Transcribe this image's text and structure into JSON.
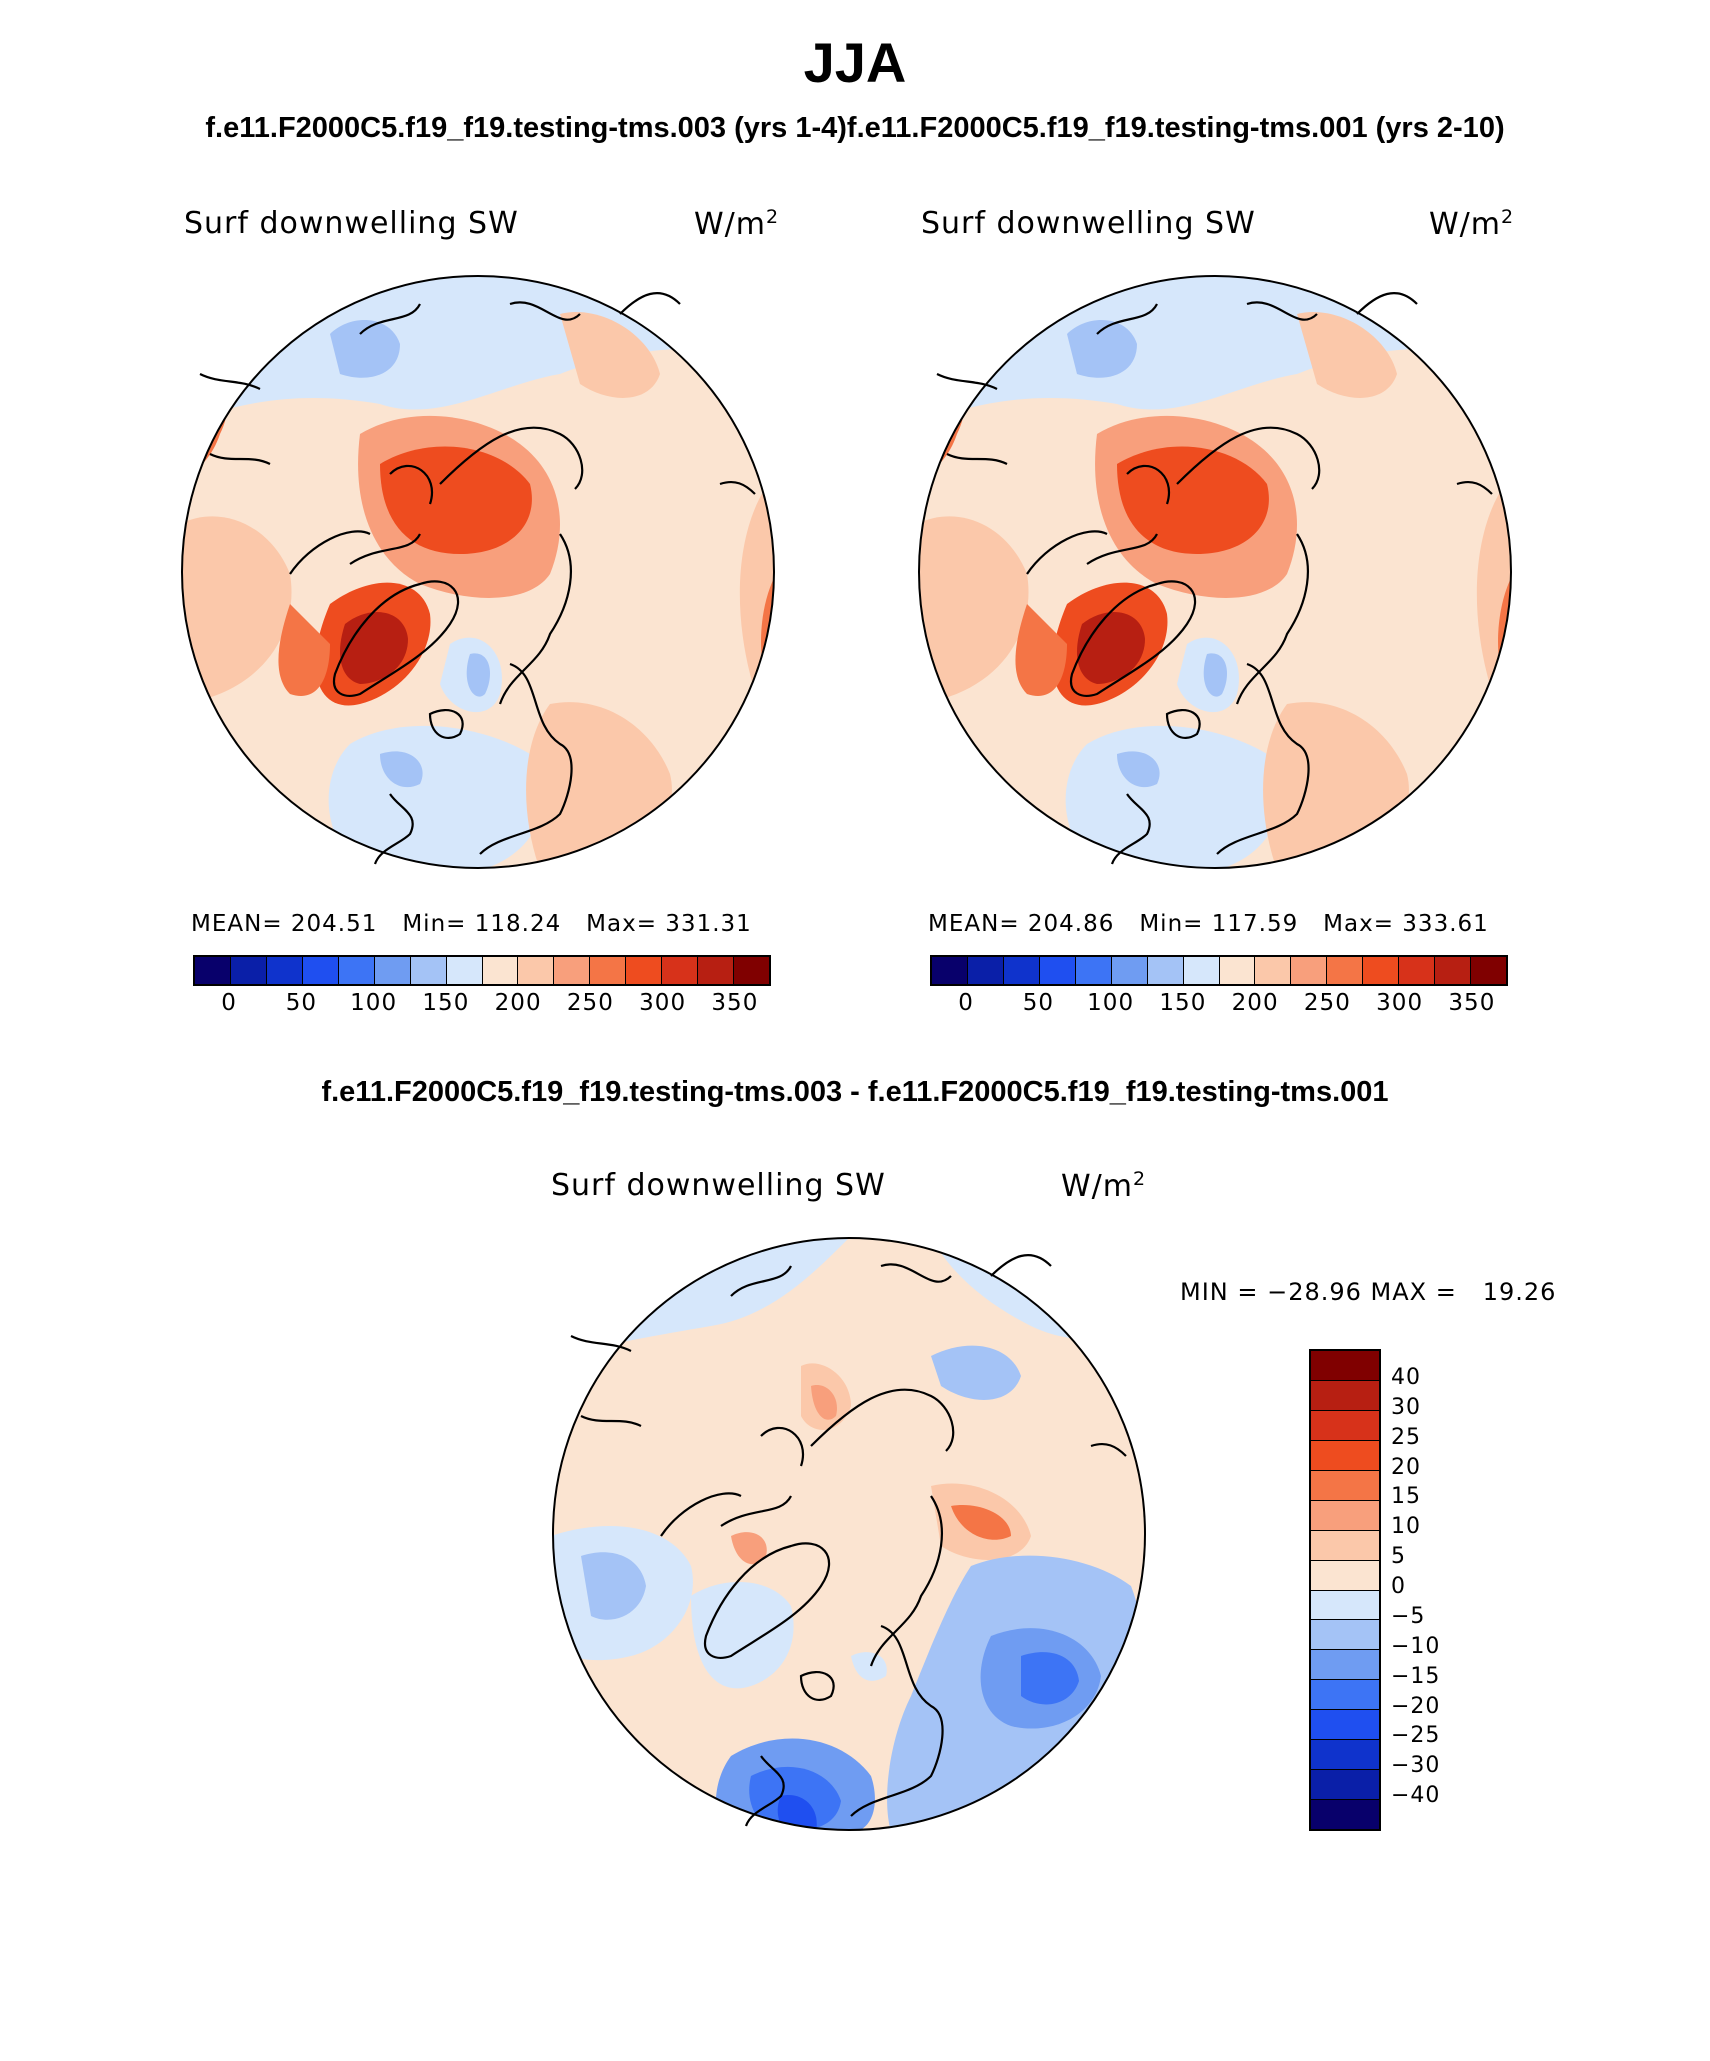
{
  "title": "JJA",
  "case_titles": "f.e11.F2000C5.f19_f19.testing-tms.003 (yrs 1-4)f.e11.F2000C5.f19_f19.testing-tms.001 (yrs 2-10)",
  "diff_title": "f.e11.F2000C5.f19_f19.testing-tms.003 - f.e11.F2000C5.f19_f19.testing-tms.001",
  "panels": [
    {
      "variable": "Surf downwelling SW",
      "units": "W/m",
      "units_exp": "2",
      "mean_label": "MEAN=",
      "mean": "204.51",
      "min_label": "Min=",
      "min": "118.24",
      "max_label": "Max=",
      "max": "331.31"
    },
    {
      "variable": "Surf downwelling SW",
      "units": "W/m",
      "units_exp": "2",
      "mean_label": "MEAN=",
      "mean": "204.86",
      "min_label": "Min=",
      "min": "117.59",
      "max_label": "Max=",
      "max": "333.61"
    }
  ],
  "colorbar": {
    "ticks": [
      "0",
      "50",
      "100",
      "150",
      "200",
      "250",
      "300",
      "350"
    ],
    "colors": [
      "#08006b",
      "#0a1fa8",
      "#0f33cc",
      "#1f4ff0",
      "#3d74f5",
      "#6f9cf2",
      "#a4c3f6",
      "#d6e7fb",
      "#fbe4d1",
      "#fbc8aa",
      "#f89f7c",
      "#f47546",
      "#ee4c1f",
      "#d7321a",
      "#b71f12",
      "#800000"
    ]
  },
  "diff_panel": {
    "variable": "Surf downwelling SW",
    "units": "W/m",
    "units_exp": "2",
    "minmax_text": "MIN = −28.96 MAX =   19.26",
    "legend_labels": [
      "40",
      "30",
      "25",
      "20",
      "15",
      "10",
      "5",
      "0",
      "−5",
      "−10",
      "−15",
      "−20",
      "−25",
      "−30",
      "−40"
    ],
    "legend_colors": [
      "#800000",
      "#b71f12",
      "#d7321a",
      "#ee4c1f",
      "#f47546",
      "#f89f7c",
      "#fbc8aa",
      "#fbe4d1",
      "#d6e7fb",
      "#a4c3f6",
      "#6f9cf2",
      "#3d74f5",
      "#1f4ff0",
      "#0f33cc",
      "#0a1fa8",
      "#08006b"
    ]
  }
}
